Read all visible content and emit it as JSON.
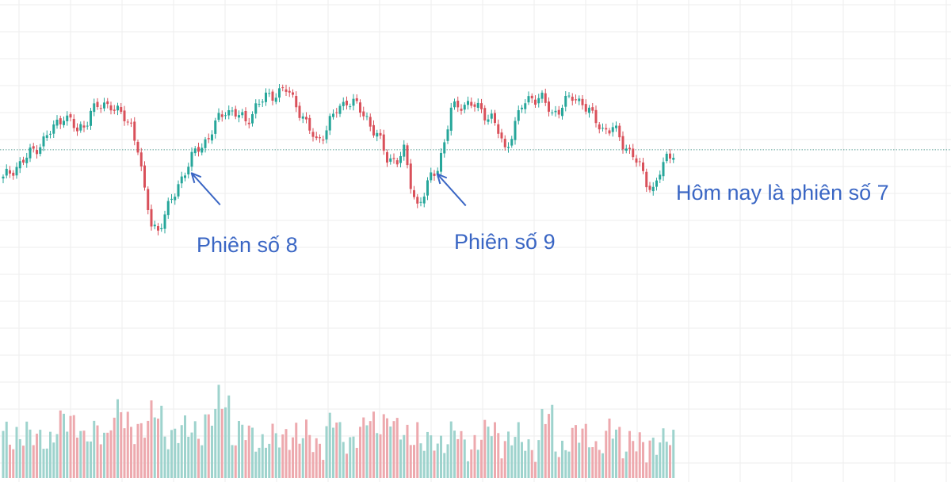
{
  "chart_data": {
    "type": "candlestick",
    "title": "",
    "xlabel": "",
    "ylabel": "",
    "grid": true,
    "colors": {
      "up": "#26a69a",
      "down": "#d9505a",
      "volume_up": "#9ed3cd",
      "volume_down": "#eda9ae",
      "reference_line": "#5a9e95",
      "grid": "#eeeeee",
      "annotation": "#3a66c4"
    },
    "price_range": [
      0,
      100
    ],
    "volume_range": [
      0,
      100
    ],
    "reference_level": 60.5,
    "path": [
      [
        0,
        44
      ],
      [
        3,
        50
      ],
      [
        7,
        56
      ],
      [
        11,
        64
      ],
      [
        15,
        72
      ],
      [
        18,
        80
      ],
      [
        20,
        76
      ],
      [
        22,
        70
      ],
      [
        24,
        74
      ],
      [
        26,
        82
      ],
      [
        29,
        84
      ],
      [
        32,
        86
      ],
      [
        35,
        79
      ],
      [
        38,
        74
      ],
      [
        40,
        62
      ],
      [
        42,
        36
      ],
      [
        44,
        20
      ],
      [
        46,
        17
      ],
      [
        49,
        28
      ],
      [
        52,
        42
      ],
      [
        55,
        52
      ],
      [
        58,
        62
      ],
      [
        61,
        67
      ],
      [
        63,
        74
      ],
      [
        66,
        83
      ],
      [
        69,
        80
      ],
      [
        72,
        76
      ],
      [
        75,
        84
      ],
      [
        78,
        89
      ],
      [
        81,
        92
      ],
      [
        84,
        93
      ],
      [
        87,
        86
      ],
      [
        90,
        74
      ],
      [
        93,
        65
      ],
      [
        96,
        72
      ],
      [
        99,
        82
      ],
      [
        102,
        88
      ],
      [
        105,
        84
      ],
      [
        108,
        78
      ],
      [
        111,
        68
      ],
      [
        114,
        56
      ],
      [
        117,
        55
      ],
      [
        119,
        59
      ],
      [
        121,
        42
      ],
      [
        123,
        30
      ],
      [
        125,
        36
      ],
      [
        127,
        45
      ],
      [
        129,
        52
      ],
      [
        131,
        64
      ],
      [
        133,
        82
      ],
      [
        136,
        86
      ],
      [
        139,
        85
      ],
      [
        142,
        82
      ],
      [
        145,
        78
      ],
      [
        147,
        70
      ],
      [
        149,
        60
      ],
      [
        151,
        70
      ],
      [
        154,
        84
      ],
      [
        157,
        90
      ],
      [
        160,
        88
      ],
      [
        163,
        80
      ],
      [
        166,
        85
      ],
      [
        169,
        89
      ],
      [
        172,
        87
      ],
      [
        175,
        78
      ],
      [
        178,
        72
      ],
      [
        181,
        72
      ],
      [
        184,
        64
      ],
      [
        187,
        58
      ],
      [
        189,
        50
      ],
      [
        191,
        43
      ],
      [
        193,
        39
      ],
      [
        195,
        48
      ],
      [
        197,
        55
      ],
      [
        199,
        60
      ]
    ],
    "volume_levels": [
      30,
      36,
      28,
      32,
      40,
      44,
      30,
      34,
      50,
      38,
      42,
      46,
      36,
      34,
      38,
      44,
      60,
      34,
      32,
      30,
      28,
      36,
      30,
      28,
      40,
      30,
      34,
      42,
      46,
      34,
      36,
      24,
      30,
      32,
      26,
      30,
      36,
      30,
      28,
      26,
      44,
      26,
      30,
      34,
      24,
      36,
      28,
      22,
      30,
      26,
      34,
      36,
      32,
      28,
      30,
      26,
      36,
      30,
      28,
      32
    ],
    "annotations": [
      {
        "text": "Phiên số 8",
        "candle_index": 55
      },
      {
        "text": "Phiên số 9",
        "candle_index": 127
      },
      {
        "text": "Hôm nay là phiên số 7",
        "candle_index": 199
      }
    ]
  }
}
